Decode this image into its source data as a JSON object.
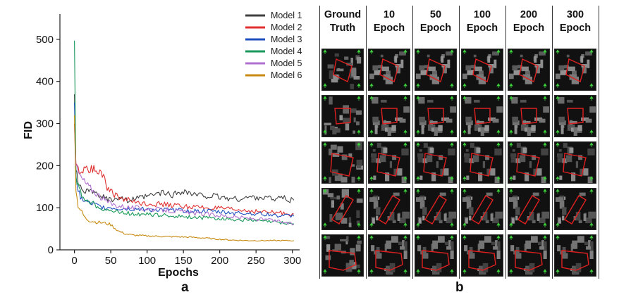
{
  "chart_data": {
    "type": "line",
    "title": "",
    "xlabel": "Epochs",
    "ylabel": "FID",
    "xlim": [
      -20,
      310
    ],
    "ylim": [
      0,
      560
    ],
    "xticks": [
      0,
      50,
      100,
      150,
      200,
      250,
      300
    ],
    "yticks": [
      0,
      100,
      200,
      300,
      400,
      500
    ],
    "grid": false,
    "legend": "top-right",
    "series": [
      {
        "name": "Model 1",
        "color": "#404040",
        "x": [
          0,
          2,
          5,
          10,
          15,
          20,
          25,
          30,
          40,
          50,
          60,
          75,
          90,
          105,
          120,
          135,
          150,
          165,
          180,
          195,
          210,
          225,
          240,
          255,
          270,
          285,
          295,
          302
        ],
        "y": [
          370,
          190,
          160,
          150,
          140,
          135,
          140,
          130,
          125,
          120,
          125,
          118,
          122,
          128,
          135,
          130,
          140,
          130,
          128,
          126,
          122,
          120,
          124,
          125,
          122,
          125,
          118,
          118
        ]
      },
      {
        "name": "Model 2",
        "color": "#e03030",
        "x": [
          0,
          2,
          5,
          10,
          15,
          20,
          25,
          30,
          35,
          40,
          45,
          50,
          55,
          60,
          70,
          80,
          100,
          120,
          140,
          160,
          180,
          200,
          220,
          240,
          260,
          280,
          302
        ],
        "y": [
          300,
          205,
          190,
          185,
          195,
          190,
          195,
          190,
          185,
          180,
          150,
          140,
          130,
          125,
          120,
          115,
          110,
          108,
          105,
          102,
          100,
          98,
          95,
          93,
          90,
          88,
          85
        ]
      },
      {
        "name": "Model 3",
        "color": "#1f4fbf",
        "x": [
          0,
          2,
          5,
          10,
          20,
          30,
          40,
          50,
          60,
          80,
          100,
          120,
          140,
          160,
          180,
          200,
          220,
          240,
          260,
          280,
          302
        ],
        "y": [
          350,
          175,
          140,
          120,
          110,
          105,
          100,
          100,
          98,
          97,
          96,
          95,
          94,
          93,
          92,
          90,
          88,
          87,
          85,
          82,
          80
        ]
      },
      {
        "name": "Model 4",
        "color": "#1a9a5a",
        "x": [
          0,
          2,
          5,
          10,
          20,
          30,
          40,
          50,
          60,
          80,
          100,
          120,
          140,
          160,
          180,
          200,
          220,
          240,
          260,
          280,
          302
        ],
        "y": [
          497,
          175,
          150,
          130,
          115,
          105,
          98,
          92,
          90,
          86,
          84,
          82,
          80,
          78,
          76,
          74,
          72,
          70,
          68,
          65,
          62
        ]
      },
      {
        "name": "Model 5",
        "color": "#b070d0",
        "x": [
          0,
          2,
          5,
          10,
          15,
          20,
          30,
          40,
          50,
          60,
          80,
          100,
          120,
          140,
          160,
          180,
          200,
          220,
          240,
          260,
          280,
          302
        ],
        "y": [
          290,
          200,
          185,
          170,
          160,
          150,
          135,
          120,
          110,
          105,
          100,
          98,
          95,
          92,
          88,
          85,
          82,
          78,
          75,
          72,
          68,
          60
        ]
      },
      {
        "name": "Model 6",
        "color": "#c88a10",
        "x": [
          0,
          2,
          5,
          10,
          15,
          20,
          25,
          30,
          40,
          50,
          60,
          70,
          80,
          100,
          120,
          140,
          160,
          180,
          200,
          220,
          240,
          260,
          280,
          302
        ],
        "y": [
          320,
          140,
          105,
          90,
          75,
          70,
          68,
          66,
          64,
          60,
          45,
          38,
          35,
          33,
          32,
          31,
          30,
          28,
          25,
          23,
          22,
          22,
          22,
          22
        ]
      }
    ]
  },
  "panels": {
    "a_label": "a",
    "b_label": "b"
  },
  "grid": {
    "columns": [
      {
        "line1": "Ground",
        "line2": "Truth"
      },
      {
        "line1": "10",
        "line2": "Epoch"
      },
      {
        "line1": "50",
        "line2": "Epoch"
      },
      {
        "line1": "100",
        "line2": "Epoch"
      },
      {
        "line1": "200",
        "line2": "Epoch"
      },
      {
        "line1": "300",
        "line2": "Epoch"
      }
    ],
    "rows": 5,
    "outline_color": "#e02020",
    "marker_color": "#3ad03a"
  }
}
